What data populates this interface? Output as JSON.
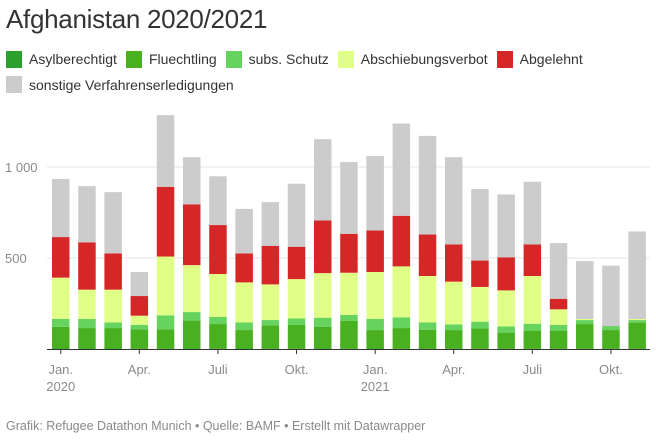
{
  "title": "Afghanistan 2020/2021",
  "footer": {
    "text": "Grafik: Refugee Datathon Munich • Quelle: BAMF • Erstellt mit Datawrapper"
  },
  "chart_data": {
    "type": "bar",
    "stacked": true,
    "title": "Afghanistan 2020/2021",
    "xlabel": "",
    "ylabel": "",
    "ylim": [
      0,
      1300
    ],
    "yticks": [
      500,
      1000
    ],
    "ytick_labels": [
      "500",
      "1 000"
    ],
    "grid": true,
    "legend_position": "top-left",
    "categories": [
      "2020-01",
      "2020-02",
      "2020-03",
      "2020-04",
      "2020-05",
      "2020-06",
      "2020-07",
      "2020-08",
      "2020-09",
      "2020-10",
      "2020-11",
      "2020-12",
      "2021-01",
      "2021-02",
      "2021-03",
      "2021-04",
      "2021-05",
      "2021-06",
      "2021-07",
      "2021-08",
      "2021-09",
      "2021-10",
      "2021-11"
    ],
    "xtick_labels": [
      {
        "category": "2020-01",
        "label": "Jan.",
        "sublabel": "2020"
      },
      {
        "category": "2020-04",
        "label": "Apr.",
        "sublabel": ""
      },
      {
        "category": "2020-07",
        "label": "Juli",
        "sublabel": ""
      },
      {
        "category": "2020-10",
        "label": "Okt.",
        "sublabel": ""
      },
      {
        "category": "2021-01",
        "label": "Jan.",
        "sublabel": "2021"
      },
      {
        "category": "2021-04",
        "label": "Apr.",
        "sublabel": ""
      },
      {
        "category": "2021-07",
        "label": "Juli",
        "sublabel": ""
      },
      {
        "category": "2021-10",
        "label": "Okt.",
        "sublabel": ""
      }
    ],
    "series": [
      {
        "name": "Asylberechtigt",
        "color": "#2ca02c",
        "values": [
          3,
          3,
          3,
          2,
          2,
          3,
          2,
          3,
          2,
          2,
          3,
          2,
          3,
          2,
          2,
          2,
          2,
          2,
          2,
          2,
          2,
          2,
          2
        ]
      },
      {
        "name": "Fluechtling",
        "color": "#49b01f",
        "values": [
          119,
          112,
          112,
          106,
          106,
          153,
          135,
          101,
          128,
          130,
          118,
          152,
          101,
          113,
          104,
          102,
          111,
          88,
          99,
          99,
          135,
          102,
          143
        ]
      },
      {
        "name": "subs. Schutz",
        "color": "#66d35f",
        "values": [
          43,
          50,
          31,
          25,
          77,
          47,
          39,
          42,
          29,
          36,
          51,
          33,
          61,
          59,
          40,
          31,
          37,
          34,
          38,
          31,
          22,
          22,
          14
        ]
      },
      {
        "name": "Abschiebungsverbot",
        "color": "#e0ff87",
        "values": [
          227,
          161,
          180,
          50,
          323,
          258,
          236,
          220,
          196,
          216,
          245,
          232,
          258,
          280,
          255,
          235,
          191,
          198,
          262,
          86,
          6,
          0,
          6
        ]
      },
      {
        "name": "Abgelehnt",
        "color": "#d62728",
        "values": [
          223,
          260,
          199,
          108,
          383,
          334,
          269,
          159,
          212,
          178,
          289,
          214,
          228,
          278,
          228,
          205,
          145,
          182,
          174,
          58,
          0,
          0,
          0
        ]
      },
      {
        "name": "sonstige Verfahrenserledigungen",
        "color": "#cccccc",
        "values": [
          319,
          309,
          337,
          132,
          394,
          259,
          268,
          245,
          240,
          346,
          447,
          394,
          409,
          507,
          542,
          479,
          393,
          345,
          344,
          306,
          318,
          332,
          481
        ]
      }
    ]
  }
}
